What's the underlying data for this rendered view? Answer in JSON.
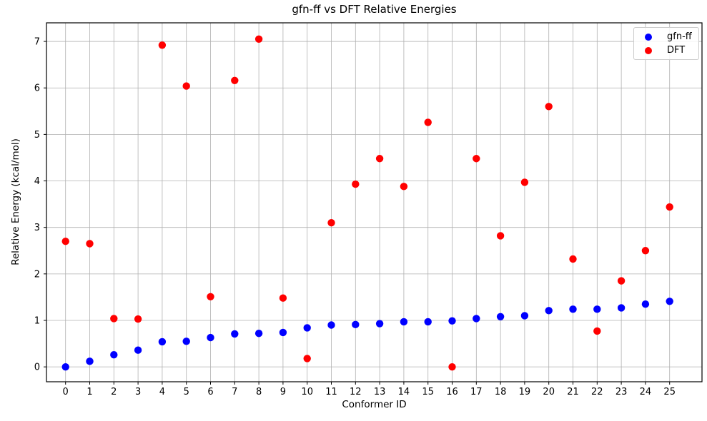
{
  "chart_data": {
    "type": "scatter",
    "title": "gfn-ff vs DFT Relative Energies",
    "xlabel": "Conformer ID",
    "ylabel": "Relative Energy (kcal/mol)",
    "grid": true,
    "legend_position": "upper right",
    "xlim": [
      -0.79,
      26.34
    ],
    "ylim": [
      -0.32,
      7.4
    ],
    "x_ticks": [
      0,
      1,
      2,
      3,
      4,
      5,
      6,
      7,
      8,
      9,
      10,
      11,
      12,
      13,
      14,
      15,
      16,
      17,
      18,
      19,
      20,
      21,
      22,
      23,
      24,
      25
    ],
    "y_ticks": [
      0,
      1,
      2,
      3,
      4,
      5,
      6,
      7
    ],
    "x": [
      0,
      1,
      2,
      3,
      4,
      5,
      6,
      7,
      8,
      9,
      10,
      11,
      12,
      13,
      14,
      15,
      16,
      17,
      18,
      19,
      20,
      21,
      22,
      23,
      24,
      25
    ],
    "series": [
      {
        "name": "gfn-ff",
        "color": "#0000ff",
        "values": [
          0.0,
          0.12,
          0.26,
          0.36,
          0.54,
          0.55,
          0.63,
          0.71,
          0.72,
          0.74,
          0.84,
          0.9,
          0.91,
          0.93,
          0.97,
          0.97,
          0.99,
          1.04,
          1.08,
          1.1,
          1.21,
          1.24,
          1.24,
          1.27,
          1.35,
          1.41
        ]
      },
      {
        "name": "DFT",
        "color": "#ff0000",
        "values": [
          2.7,
          2.65,
          1.04,
          1.03,
          6.92,
          6.04,
          1.51,
          6.16,
          7.05,
          1.48,
          0.18,
          3.1,
          3.93,
          4.48,
          3.88,
          5.26,
          0.0,
          4.48,
          2.82,
          3.97,
          5.6,
          2.32,
          0.77,
          1.85,
          2.5,
          3.44
        ]
      }
    ],
    "style": {
      "grid_color": "#b0b0b0",
      "spine_color": "#000000",
      "text_color": "#000000",
      "background": "#ffffff",
      "marker_radius": 5.2
    }
  }
}
